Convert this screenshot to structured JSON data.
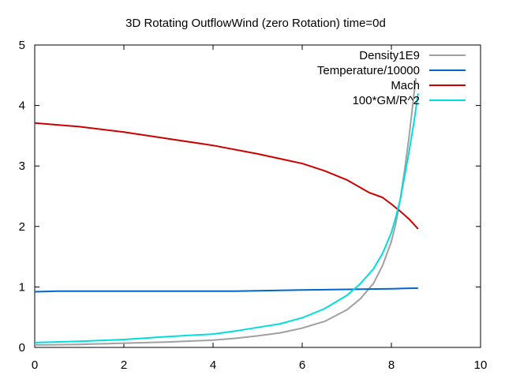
{
  "chart_data": {
    "type": "line",
    "title": "3D Rotating OutflowWind (zero Rotation) time=0d",
    "xlabel": "",
    "ylabel": "",
    "xlim": [
      0,
      10
    ],
    "ylim": [
      0,
      5
    ],
    "xticks": [
      0,
      2,
      4,
      6,
      8,
      10
    ],
    "yticks": [
      0,
      1,
      2,
      3,
      4,
      5
    ],
    "grid": false,
    "legend_position": "top-right",
    "series": [
      {
        "name": "Density1E9",
        "color": "#a0a0a0",
        "x": [
          0.0,
          1.0,
          2.0,
          3.0,
          4.0,
          4.5,
          5.0,
          5.5,
          6.0,
          6.5,
          7.0,
          7.3,
          7.6,
          7.8,
          8.0,
          8.1,
          8.2,
          8.3,
          8.4,
          8.5,
          8.55
        ],
        "y": [
          0.04,
          0.05,
          0.07,
          0.09,
          0.12,
          0.15,
          0.19,
          0.24,
          0.32,
          0.43,
          0.62,
          0.8,
          1.06,
          1.35,
          1.75,
          2.05,
          2.45,
          2.95,
          3.5,
          4.15,
          4.45
        ]
      },
      {
        "name": "Temperature/10000",
        "color": "#0066cc",
        "x": [
          0.0,
          0.5,
          1.5,
          3.0,
          4.5,
          6.0,
          7.0,
          8.0,
          8.6
        ],
        "y": [
          0.92,
          0.93,
          0.93,
          0.93,
          0.93,
          0.95,
          0.96,
          0.97,
          0.98
        ]
      },
      {
        "name": "Mach",
        "color": "#cc0000",
        "x": [
          0.0,
          0.5,
          1.0,
          2.0,
          3.0,
          4.0,
          5.0,
          5.5,
          6.0,
          6.5,
          7.0,
          7.5,
          7.8,
          8.0,
          8.2,
          8.4,
          8.6
        ],
        "y": [
          3.71,
          3.68,
          3.65,
          3.56,
          3.45,
          3.34,
          3.2,
          3.12,
          3.04,
          2.92,
          2.77,
          2.56,
          2.48,
          2.37,
          2.25,
          2.12,
          1.96
        ]
      },
      {
        "name": "100*GM/R^2",
        "color": "#00dddd",
        "x": [
          0.0,
          1.0,
          2.0,
          3.0,
          4.0,
          4.5,
          5.0,
          5.5,
          6.0,
          6.5,
          7.0,
          7.3,
          7.6,
          7.8,
          8.0,
          8.1,
          8.2,
          8.3,
          8.4,
          8.5,
          8.6
        ],
        "y": [
          0.08,
          0.1,
          0.13,
          0.18,
          0.22,
          0.27,
          0.33,
          0.39,
          0.49,
          0.64,
          0.86,
          1.05,
          1.3,
          1.55,
          1.9,
          2.15,
          2.45,
          2.85,
          3.25,
          3.7,
          4.2
        ]
      }
    ]
  }
}
